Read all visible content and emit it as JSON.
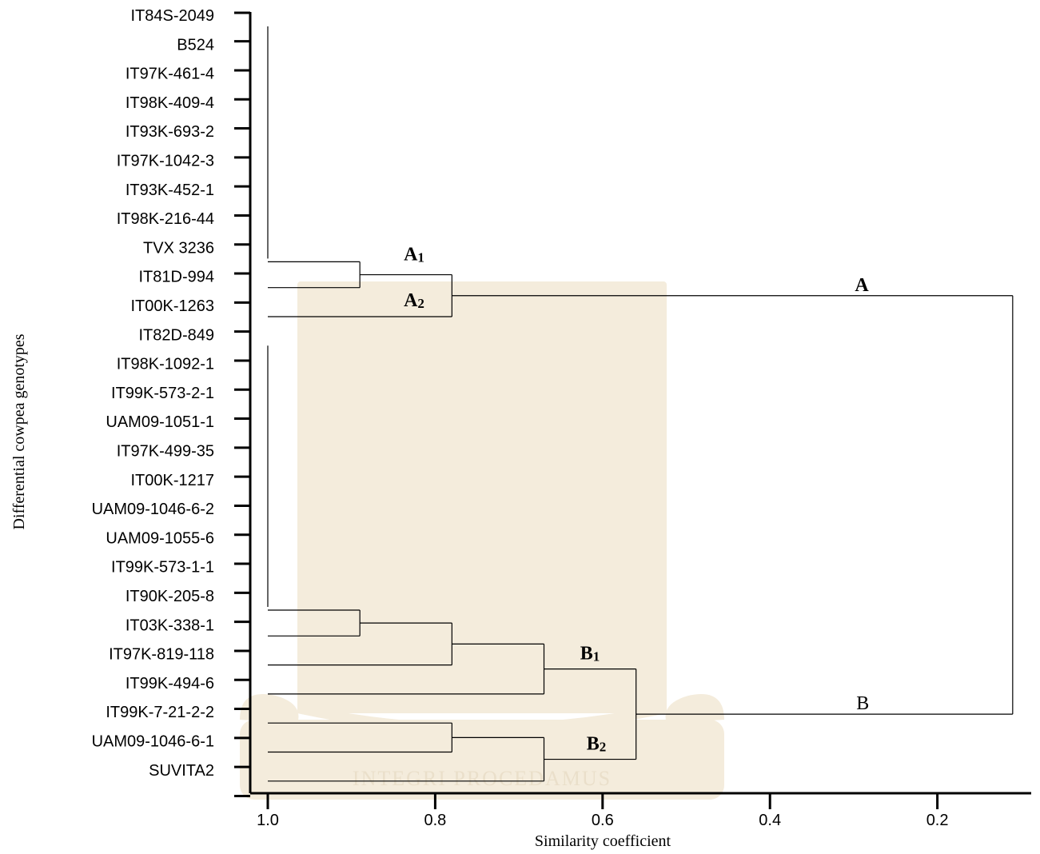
{
  "chart_data": {
    "type": "dendrogram",
    "xlabel": "Similarity coefficient",
    "ylabel": "Differential cowpea genotypes",
    "xlim": [
      1.02,
      0.085
    ],
    "x_ticks": [
      "1.0",
      "0.8",
      "0.6",
      "0.4",
      "0.2"
    ],
    "leaves": [
      "IT84S-2049",
      "B524",
      "IT97K-461-4",
      "IT98K-409-4",
      "IT93K-693-2",
      "IT97K-1042-3",
      "IT93K-452-1",
      "IT98K-216-44",
      "TVX 3236",
      "IT81D-994",
      "IT00K-1263",
      "IT82D-849",
      "IT98K-1092-1",
      "IT99K-573-2-1",
      "UAM09-1051-1",
      "IT97K-499-35",
      "IT00K-1217",
      "UAM09-1046-6-2",
      "UAM09-1055-6",
      "IT99K-573-1-1",
      "IT90K-205-8",
      "IT03K-338-1",
      "IT97K-819-118",
      "IT99K-494-6",
      "IT99K-7-21-2-2",
      "UAM09-1046-6-1",
      "SUVITA2"
    ],
    "merges": [
      {
        "id": "a1_ident",
        "children_leaves": [
          0,
          8
        ],
        "similarity": 1.0
      },
      {
        "id": "A1",
        "children": [
          "a1_ident",
          "leaf:9"
        ],
        "similarity": 0.89
      },
      {
        "id": "A",
        "children": [
          "A1",
          "leaf:10"
        ],
        "similarity": 0.78
      },
      {
        "id": "b1_ident",
        "children_leaves": [
          11,
          20
        ],
        "similarity": 1.0
      },
      {
        "id": "b1_core",
        "children": [
          "b1_ident",
          "leaf:21"
        ],
        "similarity": 0.89
      },
      {
        "id": "b1_mid",
        "children": [
          "b1_core",
          "leaf:22"
        ],
        "similarity": 0.78
      },
      {
        "id": "B1",
        "children": [
          "b1_mid",
          "leaf:23"
        ],
        "similarity": 0.67
      },
      {
        "id": "b2_pair",
        "children": [
          "leaf:24",
          "leaf:25"
        ],
        "similarity": 0.78
      },
      {
        "id": "B2",
        "children": [
          "b2_pair",
          "leaf:26"
        ],
        "similarity": 0.67
      },
      {
        "id": "B",
        "children": [
          "B1",
          "B2"
        ],
        "similarity": 0.56
      },
      {
        "id": "root",
        "children": [
          "A",
          "B"
        ],
        "similarity": 0.11
      }
    ],
    "cluster_labels": [
      {
        "text": "A",
        "sub": "1",
        "node": "A1"
      },
      {
        "text": "A",
        "sub": "2",
        "node": "leaf:10"
      },
      {
        "text": "A",
        "sub": "",
        "node": "A_top"
      },
      {
        "text": "B",
        "sub": "1",
        "node": "B1"
      },
      {
        "text": "B",
        "sub": "2",
        "node": "B2"
      },
      {
        "text": "B",
        "sub": "",
        "node": "B_bottom"
      }
    ]
  },
  "watermark": {
    "motto": "INTEGRI PROCEDAMUS",
    "color": "#f4ecdc"
  }
}
